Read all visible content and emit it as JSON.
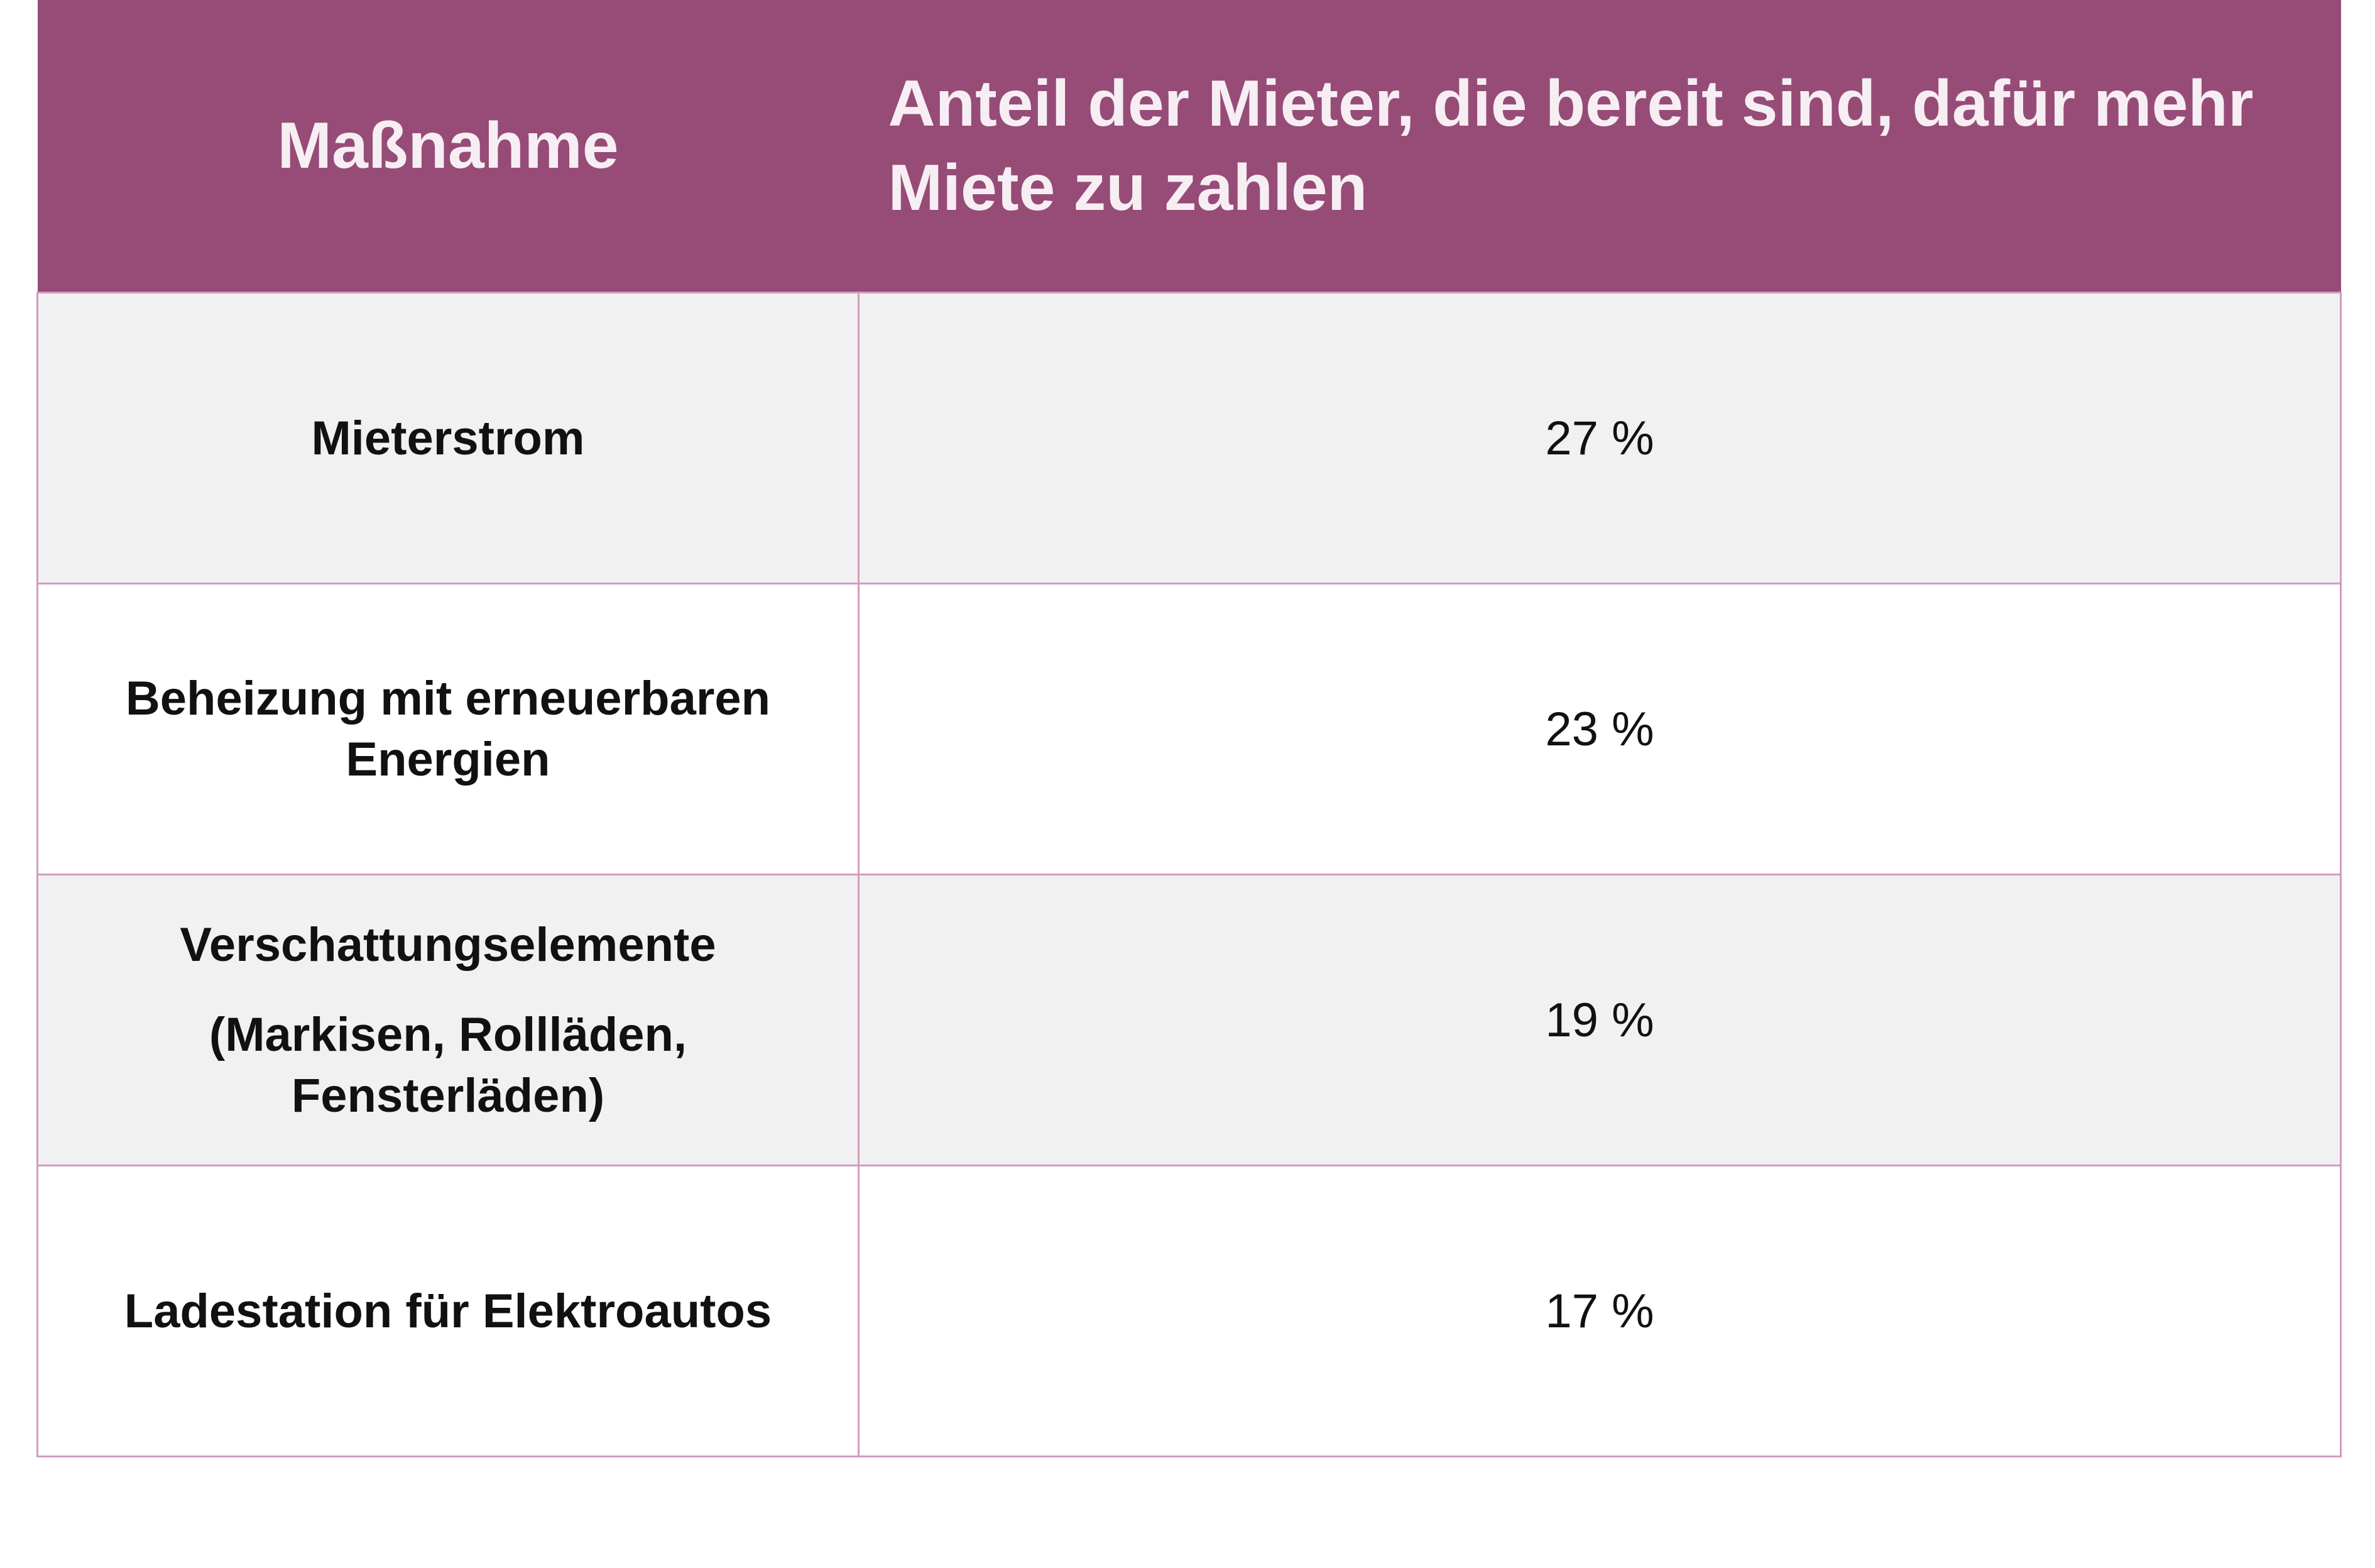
{
  "table": {
    "headers": {
      "measure": "Maßnahme",
      "share": "Anteil der Mieter, die bereit sind, dafür mehr Miete zu zahlen"
    },
    "rows": [
      {
        "measure": "Mieterstrom",
        "measure_detail": "",
        "value": "27 %"
      },
      {
        "measure": "Beheizung mit erneuerbaren Energien",
        "measure_detail": "",
        "value": "23 %"
      },
      {
        "measure": "Verschattungselemente",
        "measure_detail": "(Markisen, Rollläden, Fensterläden)",
        "value": "19 %"
      },
      {
        "measure": "Ladestation für Elektroautos",
        "measure_detail": "",
        "value": "17 %"
      }
    ]
  },
  "colors": {
    "header_background": "#964c77",
    "header_text": "#f7eef4",
    "row_shaded": "#f2f1f1",
    "row_plain": "#ffffff",
    "border": "#cf9dc2"
  }
}
